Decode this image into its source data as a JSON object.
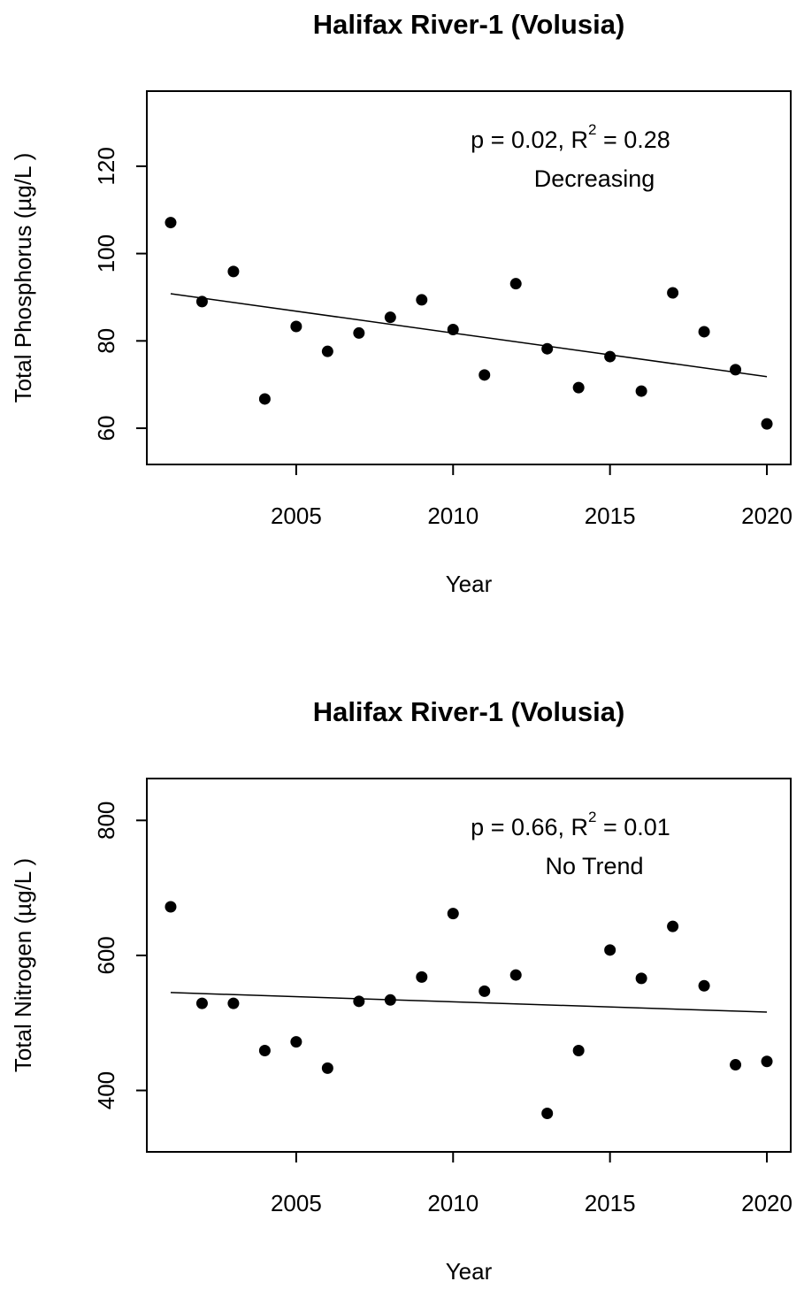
{
  "chart_data": [
    {
      "type": "scatter",
      "title": "Halifax River-1 (Volusia)",
      "x_label": "Year",
      "y_label": "Total Phosphorus (µg/L )",
      "annotation": {
        "before": "p = 0.02, R",
        "sup": "2",
        "after": " = 0.28",
        "trend": "Decreasing"
      },
      "x": [
        2001,
        2002,
        2003,
        2004,
        2005,
        2006,
        2007,
        2008,
        2009,
        2010,
        2011,
        2012,
        2013,
        2014,
        2015,
        2016,
        2017,
        2018,
        2019,
        2020
      ],
      "values": [
        107.1,
        89,
        95.9,
        66.7,
        83.3,
        77.6,
        81.8,
        85.4,
        89.4,
        82.6,
        72.2,
        93.1,
        78.2,
        69.3,
        76.4,
        68.5,
        91,
        82.1,
        73.4,
        61
      ],
      "color": "#000000",
      "fit": {
        "x": [
          2001,
          2020
        ],
        "values": [
          90.8,
          71.8
        ]
      },
      "xlim": [
        2000.24,
        2020.76
      ],
      "xticks": [
        2005,
        2010,
        2015,
        2020
      ],
      "ylim": [
        51.7,
        137.2
      ],
      "yticks": [
        60,
        80,
        100,
        120
      ]
    },
    {
      "type": "scatter",
      "title": "Halifax River-1 (Volusia)",
      "x_label": "Year",
      "y_label": "Total Nitrogen (µg/L )",
      "annotation": {
        "before": "p = 0.66, R",
        "sup": "2",
        "after": " = 0.01",
        "trend": "No Trend"
      },
      "x": [
        2001,
        2002,
        2003,
        2004,
        2005,
        2006,
        2007,
        2008,
        2009,
        2010,
        2011,
        2012,
        2013,
        2014,
        2015,
        2016,
        2017,
        2018,
        2019,
        2020
      ],
      "values": [
        672,
        529,
        529,
        459,
        472,
        433,
        532,
        534,
        568,
        662,
        547,
        571,
        366,
        459,
        608,
        566,
        643,
        555,
        438,
        443
      ],
      "color": "#000000",
      "fit": {
        "x": [
          2001,
          2020
        ],
        "values": [
          545,
          516
        ]
      },
      "xlim": [
        2000.24,
        2020.76
      ],
      "xticks": [
        2005,
        2010,
        2015,
        2020
      ],
      "ylim": [
        309,
        862
      ],
      "yticks": [
        400,
        600,
        800
      ]
    }
  ]
}
